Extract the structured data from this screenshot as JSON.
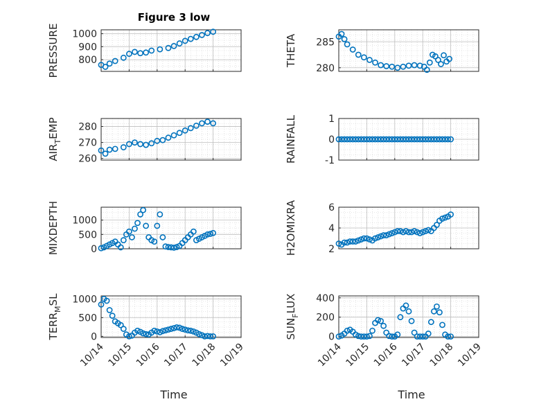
{
  "figure": {
    "title": "Figure 3 low",
    "xlabel": "Time"
  },
  "xticks": [
    "10/14",
    "10/15",
    "10/16",
    "10/17",
    "10/18",
    "10/19"
  ],
  "colors": {
    "marker": "#0072BD",
    "axis": "#262626",
    "grid": "#d0d0d0"
  },
  "chart_data": [
    {
      "type": "scatter",
      "name": "PRESSURE",
      "ylabel": "PRESSURE",
      "ylim": [
        710,
        1030
      ],
      "yticks": [
        "800",
        "900",
        "1000"
      ],
      "ytick_values": [
        800,
        900,
        1000
      ],
      "xlim": [
        0,
        5
      ],
      "grid": true,
      "x": [
        0,
        0.15,
        0.3,
        0.5,
        0.8,
        1.0,
        1.2,
        1.4,
        1.6,
        1.8,
        2.1,
        2.4,
        2.6,
        2.8,
        3.0,
        3.2,
        3.4,
        3.6,
        3.8,
        4.0
      ],
      "y": [
        760,
        745,
        770,
        790,
        815,
        845,
        860,
        850,
        855,
        870,
        880,
        890,
        905,
        925,
        945,
        960,
        975,
        990,
        1005,
        1015
      ]
    },
    {
      "type": "scatter",
      "name": "THETA",
      "ylabel": "THETA",
      "ylim": [
        279.3,
        287.3
      ],
      "yticks": [
        "280",
        "285"
      ],
      "ytick_values": [
        280,
        285
      ],
      "xlim": [
        0,
        5
      ],
      "grid": true,
      "x": [
        0,
        0.1,
        0.2,
        0.3,
        0.5,
        0.7,
        0.9,
        1.1,
        1.3,
        1.5,
        1.7,
        1.9,
        2.1,
        2.3,
        2.5,
        2.7,
        2.9,
        3.05,
        3.15,
        3.25,
        3.35,
        3.45,
        3.55,
        3.65,
        3.75,
        3.85,
        3.95
      ],
      "y": [
        286,
        286.5,
        285.5,
        284.5,
        283.5,
        282.5,
        282,
        281.5,
        281,
        280.5,
        280.3,
        280.2,
        280,
        280.2,
        280.4,
        280.5,
        280.4,
        280.2,
        279.6,
        281,
        282.5,
        282.2,
        281.5,
        280.7,
        282.4,
        281.2,
        281.7
      ]
    },
    {
      "type": "scatter",
      "name": "AIR_TEMP",
      "ylabel": "AIR_TEMP",
      "ylim": [
        259,
        285
      ],
      "yticks": [
        "260",
        "270",
        "280"
      ],
      "ytick_values": [
        260,
        270,
        280
      ],
      "xlim": [
        0,
        5
      ],
      "grid": true,
      "x": [
        0,
        0.15,
        0.3,
        0.5,
        0.8,
        1.0,
        1.2,
        1.4,
        1.6,
        1.8,
        2.0,
        2.2,
        2.4,
        2.6,
        2.8,
        3.0,
        3.2,
        3.4,
        3.6,
        3.8,
        4.0
      ],
      "y": [
        265,
        263,
        265.5,
        266,
        267,
        269,
        270,
        269,
        268.5,
        269.5,
        271,
        271.5,
        273,
        274.5,
        276,
        277.5,
        279,
        280.5,
        282,
        283,
        282
      ]
    },
    {
      "type": "scatter",
      "name": "RAINFALL",
      "ylabel": "RAINFALL",
      "ylim": [
        -1,
        1
      ],
      "yticks": [
        "-1",
        "0",
        "1"
      ],
      "ytick_values": [
        -1,
        0,
        1
      ],
      "xlim": [
        0,
        5
      ],
      "grid": true,
      "x": [
        0,
        0.1,
        0.2,
        0.3,
        0.4,
        0.5,
        0.6,
        0.7,
        0.8,
        0.9,
        1.0,
        1.1,
        1.2,
        1.3,
        1.4,
        1.5,
        1.6,
        1.7,
        1.8,
        1.9,
        2.0,
        2.1,
        2.2,
        2.3,
        2.4,
        2.5,
        2.6,
        2.7,
        2.8,
        2.9,
        3.0,
        3.1,
        3.2,
        3.3,
        3.4,
        3.5,
        3.6,
        3.7,
        3.8,
        3.9,
        4.0
      ],
      "y": [
        0,
        0,
        0,
        0,
        0,
        0,
        0,
        0,
        0,
        0,
        0,
        0,
        0,
        0,
        0,
        0,
        0,
        0,
        0,
        0,
        0,
        0,
        0,
        0,
        0,
        0,
        0,
        0,
        0,
        0,
        0,
        0,
        0,
        0,
        0,
        0,
        0,
        0,
        0,
        0,
        0
      ]
    },
    {
      "type": "scatter",
      "name": "MIXDEPTH",
      "ylabel": "MIXDEPTH",
      "ylim": [
        0,
        1450
      ],
      "yticks": [
        "0",
        "500",
        "1000"
      ],
      "ytick_values": [
        0,
        500,
        1000
      ],
      "xlim": [
        0,
        5
      ],
      "grid": true,
      "x": [
        0,
        0.1,
        0.2,
        0.3,
        0.4,
        0.5,
        0.6,
        0.7,
        0.8,
        0.9,
        1.0,
        1.1,
        1.2,
        1.3,
        1.4,
        1.5,
        1.6,
        1.7,
        1.8,
        1.9,
        2.0,
        2.1,
        2.2,
        2.3,
        2.4,
        2.5,
        2.6,
        2.7,
        2.8,
        2.9,
        3.0,
        3.1,
        3.2,
        3.3,
        3.4,
        3.5,
        3.6,
        3.7,
        3.8,
        3.9,
        4.0
      ],
      "y": [
        20,
        50,
        100,
        150,
        200,
        250,
        150,
        50,
        300,
        500,
        600,
        400,
        700,
        900,
        1200,
        1350,
        800,
        400,
        300,
        250,
        800,
        1200,
        400,
        80,
        60,
        50,
        40,
        60,
        100,
        200,
        300,
        400,
        500,
        600,
        300,
        350,
        400,
        450,
        500,
        520,
        550
      ]
    },
    {
      "type": "scatter",
      "name": "H2OMIXRA",
      "ylabel": "H2OMIXRA",
      "ylim": [
        2,
        6
      ],
      "yticks": [
        "2",
        "4",
        "6"
      ],
      "ytick_values": [
        2,
        4,
        6
      ],
      "xlim": [
        0,
        5
      ],
      "grid": true,
      "x": [
        0,
        0.1,
        0.2,
        0.3,
        0.4,
        0.5,
        0.6,
        0.7,
        0.8,
        0.9,
        1.0,
        1.1,
        1.2,
        1.3,
        1.4,
        1.5,
        1.6,
        1.7,
        1.8,
        1.9,
        2.0,
        2.1,
        2.2,
        2.3,
        2.4,
        2.5,
        2.6,
        2.7,
        2.8,
        2.9,
        3.0,
        3.1,
        3.2,
        3.3,
        3.4,
        3.5,
        3.6,
        3.7,
        3.8,
        3.9,
        4.0
      ],
      "y": [
        2.5,
        2.4,
        2.6,
        2.6,
        2.7,
        2.7,
        2.7,
        2.8,
        2.9,
        3.0,
        3.0,
        2.9,
        2.8,
        3.0,
        3.1,
        3.2,
        3.3,
        3.3,
        3.4,
        3.5,
        3.6,
        3.7,
        3.7,
        3.6,
        3.7,
        3.6,
        3.6,
        3.7,
        3.6,
        3.5,
        3.6,
        3.7,
        3.8,
        3.7,
        4.0,
        4.3,
        4.7,
        4.9,
        5.0,
        5.1,
        5.3
      ]
    },
    {
      "type": "scatter",
      "name": "TERR_MSL",
      "ylabel": "TERR_MSL",
      "ylim": [
        -30,
        1080
      ],
      "yticks": [
        "0",
        "500",
        "1000"
      ],
      "ytick_values": [
        0,
        500,
        1000
      ],
      "xlim": [
        0,
        5
      ],
      "grid": true,
      "x": [
        0,
        0.1,
        0.2,
        0.3,
        0.4,
        0.5,
        0.6,
        0.7,
        0.8,
        0.9,
        1.0,
        1.1,
        1.2,
        1.3,
        1.4,
        1.5,
        1.6,
        1.7,
        1.8,
        1.9,
        2.0,
        2.1,
        2.2,
        2.3,
        2.4,
        2.5,
        2.6,
        2.7,
        2.8,
        2.9,
        3.0,
        3.1,
        3.2,
        3.3,
        3.4,
        3.5,
        3.6,
        3.7,
        3.8,
        3.9,
        4.0
      ],
      "y": [
        850,
        1000,
        950,
        700,
        550,
        400,
        350,
        300,
        200,
        50,
        0,
        20,
        100,
        150,
        120,
        80,
        60,
        50,
        100,
        150,
        130,
        110,
        140,
        160,
        180,
        200,
        220,
        240,
        230,
        200,
        180,
        160,
        150,
        130,
        100,
        60,
        30,
        0,
        10,
        0,
        0
      ]
    },
    {
      "type": "scatter",
      "name": "SUN_FLUX",
      "ylabel": "SUN_FLUX",
      "ylim": [
        -10,
        420
      ],
      "yticks": [
        "0",
        "200",
        "400"
      ],
      "ytick_values": [
        0,
        200,
        400
      ],
      "xlim": [
        0,
        5
      ],
      "grid": true,
      "x": [
        0,
        0.1,
        0.2,
        0.3,
        0.4,
        0.5,
        0.6,
        0.7,
        0.8,
        0.9,
        1.0,
        1.1,
        1.2,
        1.3,
        1.4,
        1.5,
        1.6,
        1.7,
        1.8,
        1.9,
        2.0,
        2.1,
        2.2,
        2.3,
        2.4,
        2.5,
        2.6,
        2.7,
        2.8,
        2.9,
        3.0,
        3.1,
        3.2,
        3.3,
        3.4,
        3.5,
        3.6,
        3.7,
        3.8,
        3.9,
        4.0
      ],
      "y": [
        0,
        10,
        30,
        60,
        70,
        50,
        20,
        5,
        0,
        0,
        0,
        5,
        60,
        140,
        170,
        160,
        110,
        40,
        5,
        0,
        0,
        20,
        200,
        290,
        320,
        260,
        160,
        40,
        0,
        0,
        0,
        0,
        30,
        150,
        260,
        310,
        250,
        120,
        20,
        0,
        0
      ]
    }
  ]
}
